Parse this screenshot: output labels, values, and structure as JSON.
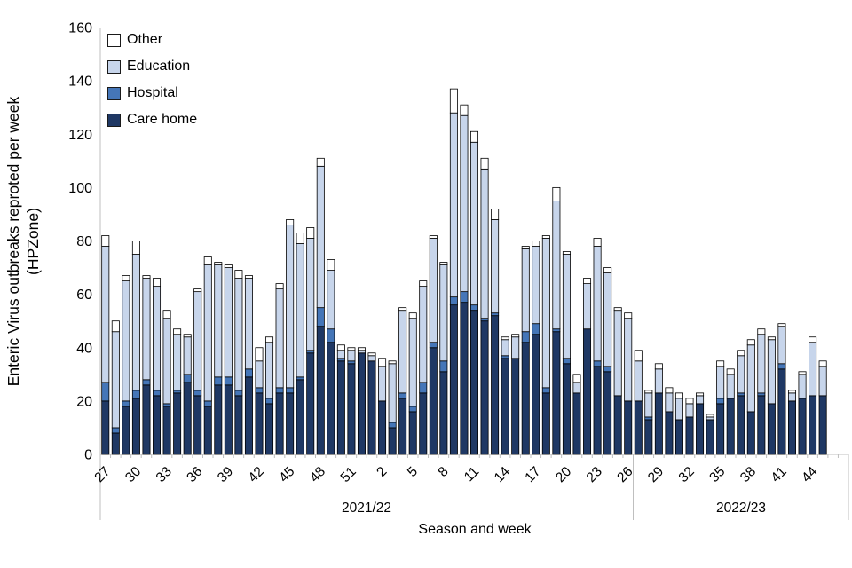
{
  "y_axis": {
    "title_line1": "Enteric Virus outbreaks reproted per week",
    "title_line2": "(HPZone)",
    "tick_min": 0,
    "tick_max": 160,
    "tick_step": 20
  },
  "x_axis": {
    "title": "Season and week",
    "label_every": 3,
    "seasons": [
      {
        "label": "2021/22",
        "n_weeks": 52
      },
      {
        "label": "2022/23",
        "n_weeks": 19
      }
    ]
  },
  "legend": [
    {
      "name": "Other",
      "color": "#FFFFFF"
    },
    {
      "name": "Education",
      "color": "#C7D5EB"
    },
    {
      "name": "Hospital",
      "color": "#4576B8"
    },
    {
      "name": "Care home",
      "color": "#1F3864"
    }
  ],
  "colors": {
    "axis_line": "#BFBFBF",
    "separator_line": "#BFBFBF",
    "bar_border": "#000000",
    "text": "#000000"
  },
  "chart_data": {
    "type": "bar",
    "stacked": true,
    "title": "",
    "xlabel": "Season and week",
    "ylabel": "Enteric Virus outbreaks reproted per week (HPZone)",
    "ylim": [
      0,
      160
    ],
    "grid": false,
    "legend_position": "top-left-inside",
    "season_split_index": 52,
    "weeks": [
      27,
      28,
      29,
      30,
      31,
      32,
      33,
      34,
      35,
      36,
      37,
      38,
      39,
      40,
      41,
      42,
      43,
      44,
      45,
      46,
      47,
      48,
      49,
      50,
      51,
      52,
      1,
      2,
      3,
      4,
      5,
      6,
      7,
      8,
      9,
      10,
      11,
      12,
      13,
      14,
      15,
      16,
      17,
      18,
      19,
      20,
      21,
      22,
      23,
      24,
      25,
      26,
      27,
      28,
      29,
      30,
      31,
      32,
      33,
      34,
      35,
      36,
      37,
      38,
      39,
      40,
      41,
      42,
      43,
      44,
      45
    ],
    "series": [
      {
        "name": "Care home",
        "color": "#1F3864",
        "values": [
          20,
          8,
          18,
          21,
          26,
          22,
          18,
          23,
          27,
          22,
          18,
          26,
          26,
          22,
          29,
          23,
          19,
          23,
          23,
          28,
          38,
          48,
          42,
          35,
          34,
          38,
          35,
          20,
          10,
          21,
          16,
          23,
          40,
          31,
          56,
          57,
          54,
          50,
          52,
          36,
          36,
          42,
          45,
          23,
          46,
          34,
          23,
          47,
          33,
          31,
          22,
          20,
          20,
          13,
          23,
          16,
          13,
          14,
          19,
          13,
          19,
          21,
          22,
          16,
          22,
          19,
          32,
          20,
          21,
          22,
          22
        ]
      },
      {
        "name": "Hospital",
        "color": "#4576B8",
        "values": [
          7,
          2,
          2,
          3,
          2,
          2,
          1,
          1,
          3,
          2,
          2,
          3,
          3,
          2,
          3,
          2,
          2,
          2,
          2,
          1,
          1,
          7,
          5,
          1,
          1,
          0,
          0,
          0,
          2,
          2,
          2,
          4,
          2,
          4,
          3,
          4,
          2,
          1,
          1,
          1,
          0,
          4,
          4,
          2,
          1,
          2,
          0,
          0,
          2,
          2,
          0,
          0,
          0,
          1,
          0,
          0,
          0,
          0,
          0,
          0,
          2,
          0,
          1,
          0,
          1,
          0,
          2,
          0,
          0,
          0,
          0
        ]
      },
      {
        "name": "Education",
        "color": "#C7D5EB",
        "values": [
          51,
          36,
          45,
          51,
          38,
          39,
          32,
          21,
          14,
          37,
          51,
          42,
          41,
          42,
          34,
          10,
          21,
          37,
          61,
          50,
          42,
          53,
          22,
          3,
          4,
          1,
          2,
          13,
          22,
          31,
          33,
          36,
          39,
          36,
          69,
          66,
          61,
          56,
          35,
          6,
          8,
          31,
          29,
          56,
          48,
          39,
          4,
          17,
          43,
          35,
          32,
          31,
          15,
          9,
          9,
          7,
          8,
          5,
          3,
          1,
          12,
          9,
          14,
          25,
          22,
          24,
          14,
          3,
          9,
          20,
          11
        ]
      },
      {
        "name": "Other",
        "color": "#FFFFFF",
        "values": [
          4,
          4,
          2,
          5,
          1,
          3,
          3,
          2,
          1,
          1,
          3,
          1,
          1,
          3,
          1,
          5,
          2,
          2,
          2,
          4,
          4,
          3,
          4,
          2,
          1,
          1,
          1,
          3,
          1,
          1,
          2,
          2,
          1,
          1,
          9,
          4,
          4,
          4,
          4,
          1,
          1,
          1,
          2,
          1,
          5,
          1,
          3,
          2,
          3,
          2,
          1,
          2,
          4,
          1,
          2,
          2,
          2,
          2,
          1,
          1,
          2,
          2,
          2,
          2,
          2,
          1,
          1,
          1,
          1,
          2,
          2
        ]
      }
    ]
  }
}
